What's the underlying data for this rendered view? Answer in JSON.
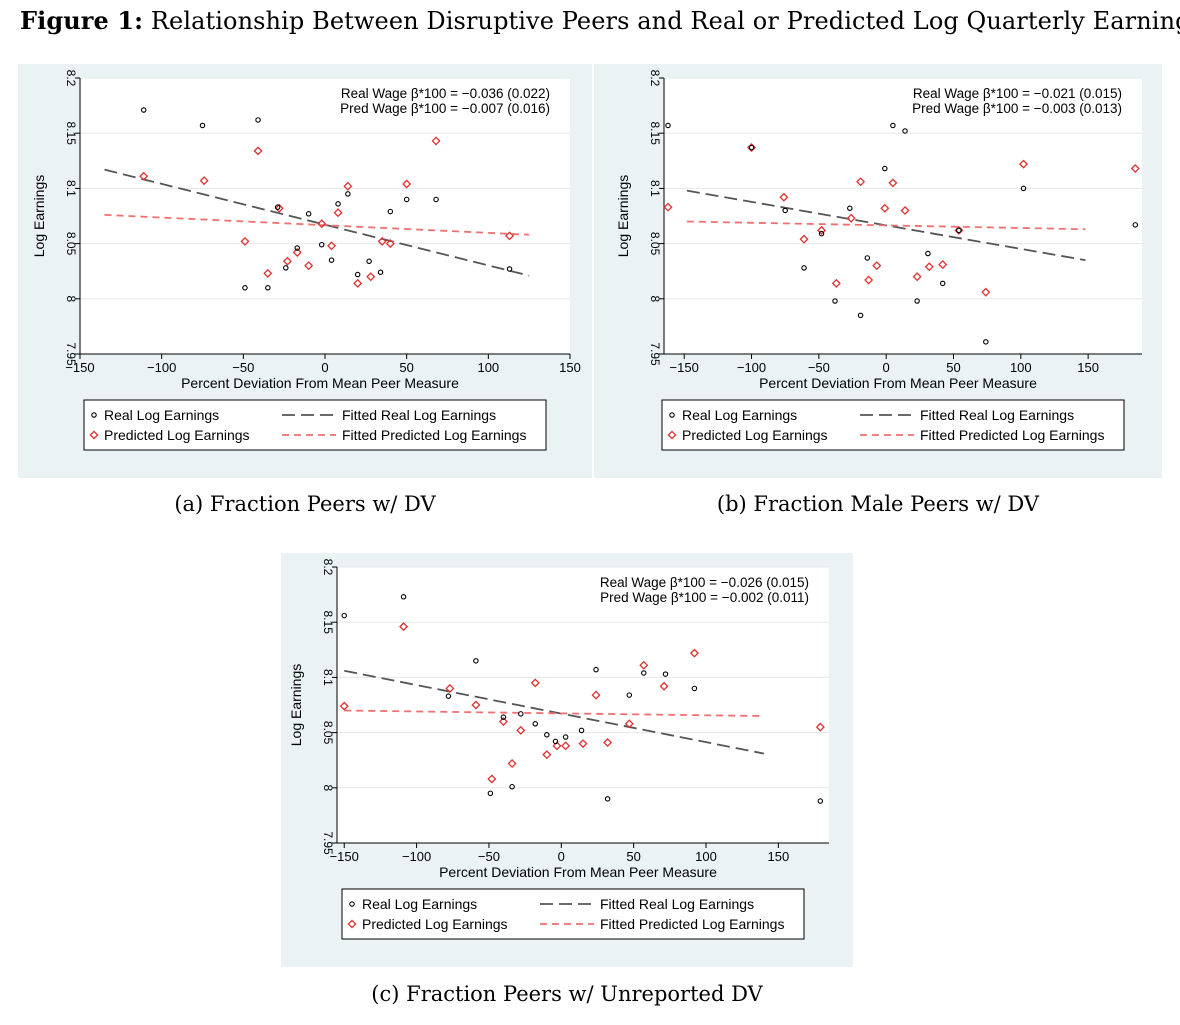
{
  "figure": {
    "label": "Figure 1:",
    "title": "Relationship Between Disruptive Peers and Real or Predicted Log Quarterly Earnings"
  },
  "legend": {
    "real": "Real Log Earnings",
    "pred": "Predicted Log Earnings",
    "fit_real": "Fitted Real Log Earnings",
    "fit_pred": "Fitted Predicted Log Earnings"
  },
  "colors": {
    "real": "#000000",
    "pred": "#e0322f",
    "fit_real": "#555555",
    "fit_pred": "#f07070",
    "panel_bg": "#eaf2f3"
  },
  "chart_data": [
    {
      "type": "scatter",
      "caption": "(a) Fraction Peers w/ DV",
      "xlabel": "Percent Deviation From Mean Peer Measure",
      "ylabel": "Log Earnings",
      "xlim": [
        -150,
        150
      ],
      "ylim": [
        7.95,
        8.2
      ],
      "xticks": [
        "-150",
        "-100",
        "-50",
        "0",
        "50",
        "100",
        "150"
      ],
      "yticks": [
        "7.95",
        "8",
        "8.05",
        "8.1",
        "8.15",
        "8.2"
      ],
      "annot": [
        "Real Wage β*100 = −0.036 (0.022)",
        "Pred Wage β*100 = −0.007 (0.016)"
      ],
      "real_points": [
        [
          -111,
          8.171
        ],
        [
          -75,
          8.157
        ],
        [
          -41,
          8.162
        ],
        [
          -49,
          8.01
        ],
        [
          -35,
          8.01
        ],
        [
          -29,
          8.083
        ],
        [
          -24,
          8.028
        ],
        [
          -17,
          8.046
        ],
        [
          -10,
          8.077
        ],
        [
          -2,
          8.049
        ],
        [
          4,
          8.035
        ],
        [
          8,
          8.086
        ],
        [
          14,
          8.095
        ],
        [
          20,
          8.022
        ],
        [
          27,
          8.034
        ],
        [
          34,
          8.024
        ],
        [
          40,
          8.079
        ],
        [
          50,
          8.09
        ],
        [
          68,
          8.09
        ],
        [
          113,
          8.027
        ]
      ],
      "pred_points": [
        [
          -111,
          8.111
        ],
        [
          -74,
          8.107
        ],
        [
          -49,
          8.052
        ],
        [
          -41,
          8.134
        ],
        [
          -35,
          8.023
        ],
        [
          -28,
          8.082
        ],
        [
          -23,
          8.034
        ],
        [
          -17,
          8.042
        ],
        [
          -10,
          8.03
        ],
        [
          -2,
          8.068
        ],
        [
          4,
          8.048
        ],
        [
          8,
          8.078
        ],
        [
          14,
          8.102
        ],
        [
          20,
          8.014
        ],
        [
          28,
          8.02
        ],
        [
          35,
          8.052
        ],
        [
          40,
          8.05
        ],
        [
          50,
          8.104
        ],
        [
          68,
          8.143
        ],
        [
          113,
          8.057
        ]
      ],
      "fit_real": [
        [
          -135,
          8.117
        ],
        [
          125,
          8.021
        ]
      ],
      "fit_pred": [
        [
          -135,
          8.076
        ],
        [
          125,
          8.058
        ]
      ]
    },
    {
      "type": "scatter",
      "caption": "(b) Fraction Male Peers w/ DV",
      "xlabel": "Percent Deviation From Mean Peer Measure",
      "ylabel": "Log Earnings",
      "xlim": [
        -165,
        190
      ],
      "ylim": [
        7.95,
        8.2
      ],
      "xticks": [
        "-150",
        "-100",
        "-50",
        "0",
        "50",
        "100",
        "150"
      ],
      "yticks": [
        "7.95",
        "8",
        "8.05",
        "8.1",
        "8.15",
        "8.2"
      ],
      "annot": [
        "Real Wage β*100 = −0.021 (0.015)",
        "Pred Wage β*100 = −0.003 (0.013)"
      ],
      "real_points": [
        [
          -162,
          8.157
        ],
        [
          -100,
          8.137
        ],
        [
          -75,
          8.08
        ],
        [
          -48,
          8.059
        ],
        [
          -61,
          8.028
        ],
        [
          -38,
          7.998
        ],
        [
          -27,
          8.082
        ],
        [
          -19,
          7.985
        ],
        [
          -14,
          8.037
        ],
        [
          -1,
          8.118
        ],
        [
          5,
          8.157
        ],
        [
          14,
          8.152
        ],
        [
          23,
          7.998
        ],
        [
          31,
          8.041
        ],
        [
          42,
          8.014
        ],
        [
          54,
          8.062
        ],
        [
          74,
          7.961
        ],
        [
          102,
          8.1
        ],
        [
          185,
          8.067
        ]
      ],
      "pred_points": [
        [
          -162,
          8.083
        ],
        [
          -100,
          8.137
        ],
        [
          -76,
          8.092
        ],
        [
          -61,
          8.054
        ],
        [
          -48,
          8.062
        ],
        [
          -37,
          8.014
        ],
        [
          -26,
          8.073
        ],
        [
          -19,
          8.106
        ],
        [
          -13,
          8.017
        ],
        [
          -7,
          8.03
        ],
        [
          -1,
          8.082
        ],
        [
          5,
          8.105
        ],
        [
          14,
          8.08
        ],
        [
          23,
          8.02
        ],
        [
          32,
          8.029
        ],
        [
          42,
          8.031
        ],
        [
          54,
          8.062
        ],
        [
          74,
          8.006
        ],
        [
          102,
          8.122
        ],
        [
          185,
          8.118
        ]
      ],
      "fit_real": [
        [
          -148,
          8.098
        ],
        [
          148,
          8.035
        ]
      ],
      "fit_pred": [
        [
          -148,
          8.07
        ],
        [
          148,
          8.063
        ]
      ]
    },
    {
      "type": "scatter",
      "caption": "(c) Fraction Peers w/ Unreported DV",
      "xlabel": "Percent Deviation From Mean Peer Measure",
      "ylabel": "Log Earnings",
      "xlim": [
        -155,
        185
      ],
      "ylim": [
        7.95,
        8.2
      ],
      "xticks": [
        "-150",
        "-100",
        "-50",
        "0",
        "50",
        "100",
        "150"
      ],
      "yticks": [
        "7.95",
        "8",
        "8.05",
        "8.1",
        "8.15",
        "8.2"
      ],
      "annot": [
        "Real Wage β*100 = −0.026 (0.015)",
        "Pred Wage β*100 = −0.002 (0.011)"
      ],
      "real_points": [
        [
          -150,
          8.156
        ],
        [
          -109,
          8.173
        ],
        [
          -78,
          8.083
        ],
        [
          -59,
          8.115
        ],
        [
          -49,
          7.995
        ],
        [
          -34,
          8.001
        ],
        [
          -40,
          8.064
        ],
        [
          -28,
          8.067
        ],
        [
          -18,
          8.058
        ],
        [
          -10,
          8.048
        ],
        [
          -4,
          8.042
        ],
        [
          3,
          8.046
        ],
        [
          14,
          8.052
        ],
        [
          24,
          8.107
        ],
        [
          32,
          7.99
        ],
        [
          47,
          8.084
        ],
        [
          57,
          8.104
        ],
        [
          72,
          8.103
        ],
        [
          92,
          8.09
        ],
        [
          179,
          7.988
        ]
      ],
      "pred_points": [
        [
          -150,
          8.074
        ],
        [
          -109,
          8.146
        ],
        [
          -77,
          8.09
        ],
        [
          -59,
          8.075
        ],
        [
          -48,
          8.008
        ],
        [
          -34,
          8.022
        ],
        [
          -40,
          8.06
        ],
        [
          -28,
          8.052
        ],
        [
          -18,
          8.095
        ],
        [
          -10,
          8.03
        ],
        [
          -3,
          8.038
        ],
        [
          3,
          8.038
        ],
        [
          15,
          8.04
        ],
        [
          24,
          8.084
        ],
        [
          32,
          8.041
        ],
        [
          47,
          8.058
        ],
        [
          57,
          8.111
        ],
        [
          71,
          8.092
        ],
        [
          92,
          8.122
        ],
        [
          179,
          8.055
        ]
      ],
      "fit_real": [
        [
          -150,
          8.106
        ],
        [
          140,
          8.031
        ]
      ],
      "fit_pred": [
        [
          -150,
          8.07
        ],
        [
          140,
          8.065
        ]
      ]
    }
  ]
}
